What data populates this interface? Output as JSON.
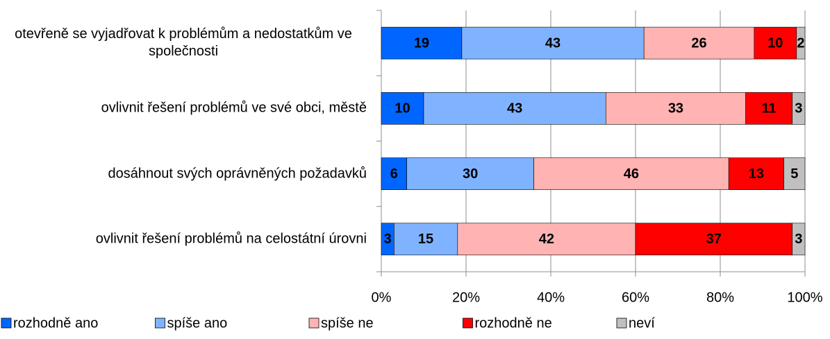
{
  "chart_data": {
    "type": "stacked_bar_horizontal",
    "categories": [
      "otevřeně se vyjadřovat k problémům a nedostatkům ve společnosti",
      "ovlivnit řešení problémů ve své obci, městě",
      "dosáhnout svých oprávněných požadavků",
      "ovlivnit řešení problémů na celostátní úrovni"
    ],
    "series": [
      {
        "name": "rozhodně ano",
        "color": "#0066ff",
        "values": [
          19,
          10,
          6,
          3
        ]
      },
      {
        "name": "spíše ano",
        "color": "#80b3ff",
        "values": [
          43,
          43,
          30,
          15
        ]
      },
      {
        "name": "spíše ne",
        "color": "#ffb3b3",
        "values": [
          26,
          33,
          46,
          42
        ]
      },
      {
        "name": "rozhodně ne",
        "color": "#ff0000",
        "values": [
          10,
          11,
          13,
          37
        ]
      },
      {
        "name": "neví",
        "color": "#c0c0c0",
        "values": [
          2,
          3,
          5,
          3
        ]
      }
    ],
    "xlim": [
      0,
      100
    ],
    "xticks": [
      {
        "value": 0,
        "label": "0%"
      },
      {
        "value": 20,
        "label": "20%"
      },
      {
        "value": 40,
        "label": "40%"
      },
      {
        "value": 60,
        "label": "60%"
      },
      {
        "value": 80,
        "label": "80%"
      },
      {
        "value": 100,
        "label": "100%"
      }
    ],
    "grid": true,
    "legend": "bottom"
  }
}
